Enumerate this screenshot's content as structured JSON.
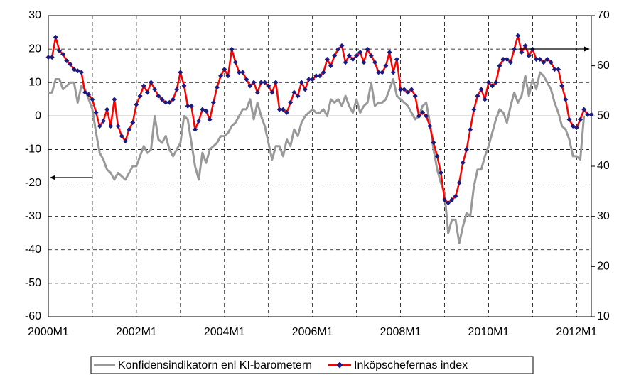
{
  "chart_data": {
    "type": "line",
    "categories": [
      "2000M1",
      null,
      null,
      null,
      null,
      null,
      null,
      null,
      null,
      null,
      null,
      null,
      null,
      null,
      null,
      null,
      null,
      null,
      null,
      null,
      null,
      null,
      null,
      null,
      "2002M1",
      null,
      null,
      null,
      null,
      null,
      null,
      null,
      null,
      null,
      null,
      null,
      null,
      null,
      null,
      null,
      null,
      null,
      null,
      null,
      null,
      null,
      null,
      null,
      "2004M1",
      null,
      null,
      null,
      null,
      null,
      null,
      null,
      null,
      null,
      null,
      null,
      null,
      null,
      null,
      null,
      null,
      null,
      null,
      null,
      null,
      null,
      null,
      null,
      "2006M1",
      null,
      null,
      null,
      null,
      null,
      null,
      null,
      null,
      null,
      null,
      null,
      null,
      null,
      null,
      null,
      null,
      null,
      null,
      null,
      null,
      null,
      null,
      null,
      "2008M1",
      null,
      null,
      null,
      null,
      null,
      null,
      null,
      null,
      null,
      null,
      null,
      null,
      null,
      null,
      null,
      null,
      null,
      null,
      null,
      null,
      null,
      null,
      null,
      "2010M1",
      null,
      null,
      null,
      null,
      null,
      null,
      null,
      null,
      null,
      null,
      null,
      null,
      null,
      null,
      null,
      null,
      null,
      null,
      null,
      null,
      null,
      null,
      null,
      "2012M1",
      null,
      null,
      null,
      null
    ],
    "series": [
      {
        "name": "Konfidensindikatorn enl KI-barometern",
        "color": "#999999",
        "values": [
          7,
          7,
          11,
          11,
          8,
          9,
          10,
          10,
          4,
          9,
          8,
          5,
          2,
          -5,
          -11,
          -13,
          -16,
          -17,
          -19,
          -17,
          -18,
          -19,
          -17,
          -15,
          -15,
          -12,
          -9,
          -11,
          -10,
          0,
          -7,
          -8,
          -6,
          -10,
          -12,
          -10,
          -8,
          0,
          -1,
          -8,
          -15,
          -19,
          -11,
          -14,
          -10,
          -9,
          -8,
          -6,
          -6,
          -5,
          -3,
          -2,
          0,
          2,
          2,
          5,
          -1,
          4,
          0,
          -3,
          -8,
          -13,
          -9,
          -9,
          -12,
          -7,
          -9,
          -4,
          -6,
          -2,
          0,
          1,
          2,
          1,
          1,
          2,
          0,
          5,
          4,
          5,
          3,
          6,
          3,
          1,
          5,
          1,
          3,
          4,
          10,
          3,
          4,
          4,
          5,
          8,
          11,
          6,
          5,
          4,
          3,
          1,
          -1,
          0,
          3,
          4,
          -2,
          -10,
          -16,
          -20,
          -23,
          -35,
          -31,
          -31,
          -38,
          -33,
          -29,
          -30,
          -21,
          -16,
          -16,
          -12,
          -9,
          -5,
          -1,
          2,
          1,
          -2,
          3,
          7,
          4,
          6,
          12,
          6,
          11,
          8,
          13,
          12,
          10,
          8,
          4,
          1,
          -3,
          -4,
          -7,
          -12,
          -12,
          -13,
          0,
          null,
          null
        ]
      },
      {
        "name": "Inköpschefernas index",
        "color": "#ff0000",
        "marker_color": "#1a1a80",
        "axis": "y2",
        "values": [
          61.7,
          61.7,
          65.7,
          63,
          62.3,
          61,
          60.3,
          59.3,
          59,
          58.7,
          54.7,
          54.3,
          53.3,
          50.7,
          48,
          49,
          51.3,
          48,
          53.3,
          48,
          46,
          45,
          47.3,
          48.7,
          52.3,
          54,
          56,
          54.7,
          56.7,
          55.3,
          54,
          53.3,
          52.7,
          52.7,
          53.3,
          55.3,
          58.7,
          56,
          52,
          52,
          47.3,
          49,
          51.3,
          51,
          49.3,
          52.7,
          55.7,
          58,
          59.3,
          58,
          63.3,
          60.7,
          58.7,
          58.7,
          57.3,
          56,
          56.7,
          54.7,
          56.7,
          56.7,
          56,
          54.7,
          56.7,
          51.3,
          51.3,
          50.7,
          52.7,
          54.7,
          54,
          56.7,
          55.3,
          57.3,
          57.3,
          58,
          58,
          58.7,
          61.3,
          60,
          62,
          63.3,
          64,
          60.7,
          62,
          61.3,
          62,
          62.7,
          60.7,
          63.3,
          62,
          60.7,
          58.7,
          58.7,
          60,
          62.7,
          58.7,
          61.3,
          55.3,
          55.3,
          54.7,
          55.3,
          54,
          50,
          50.7,
          50,
          48,
          44.7,
          42,
          38.7,
          33.3,
          32.7,
          33.3,
          34,
          36.7,
          40.7,
          43.3,
          47.3,
          51.3,
          54,
          55.3,
          53.3,
          56.7,
          56,
          56.7,
          60,
          61.3,
          61.3,
          60.7,
          63.3,
          66,
          62.7,
          64,
          62,
          63.3,
          61.3,
          61.3,
          60.7,
          61.3,
          60.7,
          59.3,
          59.3,
          56,
          53.3,
          49.3,
          48,
          47.7,
          49.3,
          51.3,
          50.3,
          50.3
        ]
      }
    ],
    "ylim": [
      -60,
      30
    ],
    "yticks": [
      -60,
      -50,
      -40,
      -30,
      -20,
      -10,
      0,
      10,
      20,
      30
    ],
    "y2lim": [
      10,
      70
    ],
    "y2ticks": [
      10,
      20,
      30,
      40,
      50,
      60,
      70
    ],
    "grid": true,
    "legend": "bottom"
  }
}
